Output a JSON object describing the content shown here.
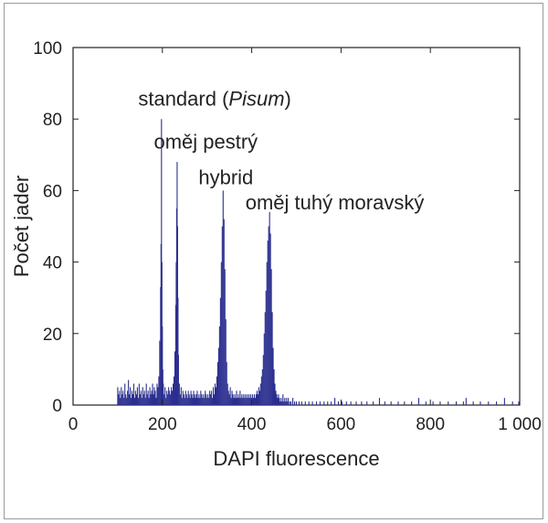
{
  "chart_data": {
    "type": "histogram",
    "xlabel": "DAPI fluorescence",
    "ylabel": "Počet jader",
    "xlim": [
      0,
      1000
    ],
    "ylim": [
      0,
      100
    ],
    "xticks": [
      {
        "value": 0,
        "label": "0"
      },
      {
        "value": 200,
        "label": "200"
      },
      {
        "value": 400,
        "label": "400"
      },
      {
        "value": 600,
        "label": "600"
      },
      {
        "value": 800,
        "label": "800"
      },
      {
        "value": 1000,
        "label": "1 000"
      }
    ],
    "yticks": [
      {
        "value": 0,
        "label": "0"
      },
      {
        "value": 20,
        "label": "20"
      },
      {
        "value": 40,
        "label": "40"
      },
      {
        "value": 60,
        "label": "60"
      },
      {
        "value": 80,
        "label": "80"
      },
      {
        "value": 100,
        "label": "100"
      }
    ],
    "bar_color": "#2b2f8f",
    "grid": false,
    "annotations": [
      {
        "prefix": "standard (",
        "italic": "Pisum",
        "suffix": ")",
        "x": 195,
        "y": 85
      },
      {
        "prefix": "oměj pestrý",
        "italic": "",
        "suffix": "",
        "x": 230,
        "y": 73
      },
      {
        "prefix": "hybrid",
        "italic": "",
        "suffix": "",
        "x": 330,
        "y": 63
      },
      {
        "prefix": "oměj tuhý moravský",
        "italic": "",
        "suffix": "",
        "x": 435,
        "y": 56
      }
    ],
    "peaks": [
      {
        "x": 198,
        "y": 80
      },
      {
        "x": 233,
        "y": 68
      },
      {
        "x": 336,
        "y": 60
      },
      {
        "x": 440,
        "y": 54
      }
    ],
    "bins": [
      [
        100,
        5
      ],
      [
        102,
        3
      ],
      [
        104,
        4
      ],
      [
        106,
        2
      ],
      [
        108,
        5
      ],
      [
        110,
        3
      ],
      [
        112,
        4
      ],
      [
        114,
        2
      ],
      [
        116,
        6
      ],
      [
        118,
        3
      ],
      [
        120,
        2
      ],
      [
        122,
        4
      ],
      [
        124,
        7
      ],
      [
        126,
        3
      ],
      [
        128,
        5
      ],
      [
        130,
        2
      ],
      [
        132,
        4
      ],
      [
        134,
        3
      ],
      [
        136,
        6
      ],
      [
        138,
        2
      ],
      [
        140,
        4
      ],
      [
        142,
        3
      ],
      [
        144,
        5
      ],
      [
        146,
        2
      ],
      [
        148,
        6
      ],
      [
        150,
        3
      ],
      [
        152,
        4
      ],
      [
        154,
        2
      ],
      [
        156,
        5
      ],
      [
        158,
        3
      ],
      [
        160,
        4
      ],
      [
        162,
        2
      ],
      [
        164,
        6
      ],
      [
        166,
        3
      ],
      [
        168,
        4
      ],
      [
        170,
        2
      ],
      [
        172,
        5
      ],
      [
        174,
        3
      ],
      [
        176,
        4
      ],
      [
        178,
        6
      ],
      [
        180,
        3
      ],
      [
        182,
        5
      ],
      [
        184,
        4
      ],
      [
        186,
        2
      ],
      [
        188,
        6
      ],
      [
        190,
        5
      ],
      [
        192,
        8
      ],
      [
        194,
        18
      ],
      [
        196,
        33
      ],
      [
        197,
        45
      ],
      [
        198,
        80
      ],
      [
        199,
        40
      ],
      [
        200,
        22
      ],
      [
        201,
        10
      ],
      [
        202,
        6
      ],
      [
        204,
        3
      ],
      [
        206,
        5
      ],
      [
        208,
        2
      ],
      [
        210,
        4
      ],
      [
        212,
        3
      ],
      [
        214,
        5
      ],
      [
        216,
        4
      ],
      [
        218,
        3
      ],
      [
        220,
        5
      ],
      [
        222,
        4
      ],
      [
        224,
        6
      ],
      [
        226,
        8
      ],
      [
        228,
        15
      ],
      [
        230,
        28
      ],
      [
        231,
        40
      ],
      [
        232,
        55
      ],
      [
        233,
        68
      ],
      [
        234,
        50
      ],
      [
        235,
        30
      ],
      [
        236,
        14
      ],
      [
        238,
        6
      ],
      [
        240,
        3
      ],
      [
        242,
        5
      ],
      [
        244,
        2
      ],
      [
        246,
        4
      ],
      [
        248,
        3
      ],
      [
        250,
        2
      ],
      [
        252,
        4
      ],
      [
        254,
        3
      ],
      [
        256,
        2
      ],
      [
        258,
        4
      ],
      [
        260,
        3
      ],
      [
        262,
        2
      ],
      [
        264,
        4
      ],
      [
        266,
        3
      ],
      [
        268,
        2
      ],
      [
        270,
        4
      ],
      [
        272,
        3
      ],
      [
        274,
        2
      ],
      [
        276,
        3
      ],
      [
        278,
        4
      ],
      [
        280,
        2
      ],
      [
        282,
        3
      ],
      [
        284,
        2
      ],
      [
        286,
        4
      ],
      [
        288,
        3
      ],
      [
        290,
        2
      ],
      [
        292,
        3
      ],
      [
        294,
        2
      ],
      [
        296,
        4
      ],
      [
        298,
        3
      ],
      [
        300,
        2
      ],
      [
        302,
        3
      ],
      [
        304,
        2
      ],
      [
        306,
        4
      ],
      [
        308,
        3
      ],
      [
        310,
        4
      ],
      [
        312,
        2
      ],
      [
        314,
        5
      ],
      [
        316,
        3
      ],
      [
        318,
        6
      ],
      [
        320,
        5
      ],
      [
        322,
        8
      ],
      [
        324,
        12
      ],
      [
        326,
        16
      ],
      [
        328,
        22
      ],
      [
        330,
        30
      ],
      [
        332,
        40
      ],
      [
        334,
        50
      ],
      [
        336,
        60
      ],
      [
        338,
        52
      ],
      [
        340,
        38
      ],
      [
        342,
        24
      ],
      [
        344,
        12
      ],
      [
        346,
        6
      ],
      [
        348,
        4
      ],
      [
        350,
        3
      ],
      [
        352,
        5
      ],
      [
        354,
        2
      ],
      [
        356,
        4
      ],
      [
        358,
        3
      ],
      [
        360,
        2
      ],
      [
        362,
        3
      ],
      [
        364,
        2
      ],
      [
        366,
        4
      ],
      [
        368,
        2
      ],
      [
        370,
        3
      ],
      [
        372,
        2
      ],
      [
        374,
        4
      ],
      [
        376,
        2
      ],
      [
        378,
        3
      ],
      [
        380,
        2
      ],
      [
        382,
        3
      ],
      [
        384,
        2
      ],
      [
        386,
        3
      ],
      [
        388,
        2
      ],
      [
        390,
        3
      ],
      [
        392,
        2
      ],
      [
        394,
        3
      ],
      [
        396,
        2
      ],
      [
        398,
        3
      ],
      [
        400,
        2
      ],
      [
        402,
        3
      ],
      [
        404,
        2
      ],
      [
        406,
        3
      ],
      [
        408,
        2
      ],
      [
        410,
        3
      ],
      [
        412,
        4
      ],
      [
        414,
        3
      ],
      [
        416,
        5
      ],
      [
        418,
        4
      ],
      [
        420,
        6
      ],
      [
        422,
        8
      ],
      [
        424,
        10
      ],
      [
        426,
        14
      ],
      [
        428,
        20
      ],
      [
        430,
        26
      ],
      [
        432,
        32
      ],
      [
        434,
        40
      ],
      [
        436,
        46
      ],
      [
        438,
        50
      ],
      [
        440,
        54
      ],
      [
        442,
        48
      ],
      [
        444,
        38
      ],
      [
        446,
        26
      ],
      [
        448,
        16
      ],
      [
        450,
        10
      ],
      [
        452,
        6
      ],
      [
        454,
        4
      ],
      [
        456,
        3
      ],
      [
        458,
        2
      ],
      [
        460,
        3
      ],
      [
        462,
        2
      ],
      [
        464,
        1
      ],
      [
        466,
        2
      ],
      [
        468,
        1
      ],
      [
        470,
        3
      ],
      [
        472,
        1
      ],
      [
        474,
        2
      ],
      [
        476,
        1
      ],
      [
        478,
        2
      ],
      [
        480,
        1
      ],
      [
        482,
        2
      ],
      [
        485,
        1
      ],
      [
        488,
        1
      ],
      [
        492,
        2
      ],
      [
        496,
        1
      ],
      [
        500,
        1
      ],
      [
        506,
        1
      ],
      [
        512,
        1
      ],
      [
        520,
        1
      ],
      [
        528,
        1
      ],
      [
        536,
        1
      ],
      [
        545,
        1
      ],
      [
        553,
        1
      ],
      [
        562,
        1
      ],
      [
        570,
        1
      ],
      [
        578,
        1
      ],
      [
        586,
        2
      ],
      [
        594,
        1
      ],
      [
        602,
        1
      ],
      [
        612,
        1
      ],
      [
        622,
        1
      ],
      [
        634,
        1
      ],
      [
        646,
        1
      ],
      [
        658,
        1
      ],
      [
        672,
        1
      ],
      [
        686,
        2
      ],
      [
        698,
        1
      ],
      [
        712,
        1
      ],
      [
        728,
        1
      ],
      [
        742,
        1
      ],
      [
        758,
        1
      ],
      [
        774,
        2
      ],
      [
        790,
        1
      ],
      [
        806,
        1
      ],
      [
        822,
        1
      ],
      [
        840,
        1
      ],
      [
        858,
        1
      ],
      [
        874,
        1
      ],
      [
        880,
        2
      ],
      [
        896,
        1
      ],
      [
        912,
        1
      ],
      [
        930,
        1
      ],
      [
        948,
        1
      ],
      [
        966,
        2
      ],
      [
        984,
        1
      ],
      [
        998,
        1
      ]
    ]
  }
}
